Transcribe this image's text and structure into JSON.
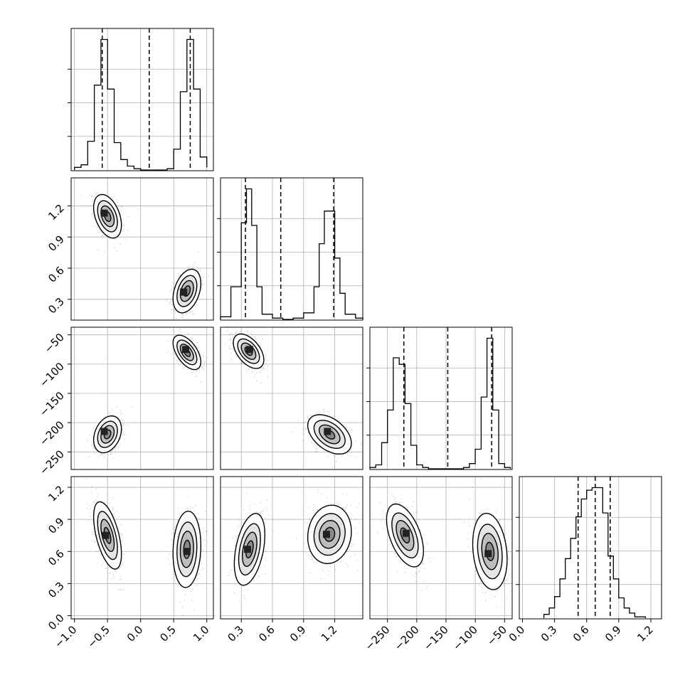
{
  "chart_data": {
    "type": "corner",
    "title": "",
    "params": [
      {
        "xlim": [
          -1.05,
          1.1
        ],
        "ticks": [
          -1.0,
          -0.5,
          0.0,
          0.5,
          1.0
        ],
        "tick_labels": [
          "−1.0",
          "−0.5",
          "0.0",
          "0.5",
          "1.0"
        ],
        "quantiles": [
          -0.58,
          0.13,
          0.75
        ],
        "hist": {
          "edges": [
            -1.0,
            -0.9,
            -0.8,
            -0.7,
            -0.6,
            -0.55,
            -0.5,
            -0.4,
            -0.3,
            -0.2,
            -0.1,
            0.0,
            0.1,
            0.2,
            0.3,
            0.4,
            0.5,
            0.6,
            0.7,
            0.8,
            0.9,
            1.0
          ],
          "counts": [
            0.02,
            0.04,
            0.22,
            0.65,
            1.0,
            1.0,
            0.62,
            0.21,
            0.08,
            0.03,
            0.01,
            0.0,
            0.0,
            0.0,
            0.0,
            0.01,
            0.16,
            0.6,
            1.0,
            0.62,
            0.1,
            0.02
          ]
        }
      },
      {
        "xlim": [
          0.1,
          1.47
        ],
        "ticks": [
          0.3,
          0.6,
          0.9,
          1.2
        ],
        "tick_labels": [
          "0.3",
          "0.6",
          "0.9",
          "1.2"
        ],
        "quantiles": [
          0.34,
          0.68,
          1.19
        ],
        "hist": {
          "edges": [
            0.1,
            0.2,
            0.3,
            0.35,
            0.4,
            0.45,
            0.5,
            0.6,
            0.7,
            0.8,
            0.9,
            1.0,
            1.05,
            1.1,
            1.15,
            1.2,
            1.25,
            1.3,
            1.4,
            1.47
          ],
          "counts": [
            0.02,
            0.25,
            0.74,
            1.0,
            0.72,
            0.25,
            0.04,
            0.01,
            0.0,
            0.01,
            0.05,
            0.25,
            0.58,
            0.83,
            0.83,
            0.47,
            0.2,
            0.04,
            0.01
          ]
        }
      },
      {
        "xlim": [
          -280,
          -37
        ],
        "ticks": [
          -250,
          -200,
          -150,
          -100,
          -50
        ],
        "tick_labels": [
          "−250",
          "−200",
          "−150",
          "−100",
          "−50"
        ],
        "quantiles": [
          -222,
          -147,
          -72
        ],
        "hist": {
          "edges": [
            -280,
            -270,
            -260,
            -250,
            -240,
            -230,
            -220,
            -210,
            -200,
            -190,
            -180,
            -170,
            -160,
            -150,
            -140,
            -130,
            -120,
            -110,
            -100,
            -90,
            -80,
            -70,
            -60,
            -50,
            -40
          ],
          "counts": [
            0.01,
            0.03,
            0.2,
            0.45,
            0.85,
            0.8,
            0.5,
            0.18,
            0.03,
            0.01,
            0.0,
            0.0,
            0.0,
            0.0,
            0.0,
            0.0,
            0.01,
            0.04,
            0.15,
            0.55,
            1.0,
            0.45,
            0.04,
            0.01
          ]
        }
      },
      {
        "xlim": [
          -0.03,
          1.3
        ],
        "ticks": [
          0.0,
          0.3,
          0.6,
          0.9,
          1.2
        ],
        "tick_labels": [
          "0.0",
          "0.3",
          "0.6",
          "0.9",
          "1.2"
        ],
        "quantiles": [
          0.52,
          0.68,
          0.82
        ],
        "hist": {
          "edges": [
            0.2,
            0.25,
            0.3,
            0.35,
            0.4,
            0.45,
            0.5,
            0.55,
            0.6,
            0.65,
            0.7,
            0.75,
            0.8,
            0.85,
            0.9,
            0.95,
            1.0,
            1.05,
            1.1,
            1.15
          ],
          "counts": [
            0.03,
            0.08,
            0.17,
            0.31,
            0.47,
            0.63,
            0.8,
            0.94,
            1.01,
            1.03,
            1.03,
            0.83,
            0.49,
            0.31,
            0.16,
            0.08,
            0.04,
            0.01,
            0.01
          ]
        }
      }
    ],
    "blobs": [
      {
        "row": 1,
        "col": 0,
        "modes": [
          {
            "x": -0.5,
            "y": 1.1,
            "sx": 0.1,
            "sy": 0.1,
            "rho": -0.4,
            "peak": [
              -0.55,
              1.13
            ]
          },
          {
            "x": 0.7,
            "y": 0.38,
            "sx": 0.1,
            "sy": 0.1,
            "rho": 0.35,
            "peak": [
              0.65,
              0.37
            ]
          }
        ]
      },
      {
        "row": 2,
        "col": 0,
        "modes": [
          {
            "x": 0.7,
            "y": -80,
            "sx": 0.1,
            "sy": 14,
            "rho": -0.55,
            "peak": [
              0.68,
              -75
            ]
          },
          {
            "x": -0.5,
            "y": -220,
            "sx": 0.1,
            "sy": 15,
            "rho": 0.3,
            "peak": [
              -0.55,
              -215
            ]
          }
        ]
      },
      {
        "row": 2,
        "col": 1,
        "modes": [
          {
            "x": 0.37,
            "y": -78,
            "sx": 0.07,
            "sy": 14,
            "rho": -0.5,
            "peak": [
              0.38,
              -75
            ]
          },
          {
            "x": 1.15,
            "y": -220,
            "sx": 0.1,
            "sy": 16,
            "rho": -0.45,
            "peak": [
              1.13,
              -215
            ]
          }
        ]
      },
      {
        "row": 3,
        "col": 0,
        "modes": [
          {
            "x": -0.5,
            "y": 0.75,
            "sx": 0.1,
            "sy": 0.15,
            "rho": -0.55,
            "peak": [
              -0.53,
              0.75
            ]
          },
          {
            "x": 0.7,
            "y": 0.62,
            "sx": 0.1,
            "sy": 0.17,
            "rho": 0.1,
            "peak": [
              0.7,
              0.6
            ]
          }
        ]
      },
      {
        "row": 3,
        "col": 1,
        "modes": [
          {
            "x": 0.38,
            "y": 0.62,
            "sx": 0.07,
            "sy": 0.16,
            "rho": 0.4,
            "peak": [
              0.36,
              0.62
            ]
          },
          {
            "x": 1.15,
            "y": 0.76,
            "sx": 0.1,
            "sy": 0.13,
            "rho": 0.1,
            "peak": [
              1.12,
              0.76
            ]
          }
        ]
      },
      {
        "row": 3,
        "col": 2,
        "modes": [
          {
            "x": -220,
            "y": 0.75,
            "sx": 15,
            "sy": 0.14,
            "rho": -0.5,
            "peak": [
              -218,
              0.77
            ]
          },
          {
            "x": -75,
            "y": 0.6,
            "sx": 14,
            "sy": 0.17,
            "rho": -0.2,
            "peak": [
              -78,
              0.58
            ]
          }
        ]
      }
    ],
    "grid": true
  }
}
